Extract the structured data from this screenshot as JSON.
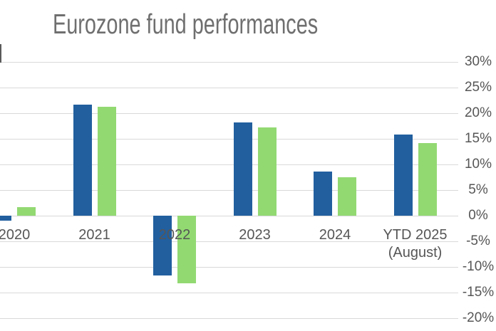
{
  "chart_data": {
    "type": "bar",
    "title": "Eurozone fund performances",
    "categories": [
      "2020",
      "2021",
      "2022",
      "2023",
      "2024",
      "YTD 2025"
    ],
    "category_sublabels": [
      "",
      "",
      "",
      "",
      "",
      "(August)"
    ],
    "series": [
      {
        "name": "blue-series",
        "color": "#215F9F",
        "values": [
          -1.0,
          21.7,
          -11.6,
          18.2,
          8.6,
          15.9
        ]
      },
      {
        "name": "green-series",
        "color": "#92D972",
        "values": [
          1.6,
          21.2,
          -13.2,
          17.2,
          7.5,
          14.1
        ]
      }
    ],
    "y_axis": {
      "side": "right",
      "min": -20,
      "max": 30,
      "step": 5,
      "unit": "%",
      "tick_labels": [
        "30%",
        "25%",
        "20%",
        "15%",
        "10%",
        "5%",
        "0%",
        "-5%",
        "-10%",
        "-15%",
        "-20%"
      ]
    },
    "grid": true,
    "legend_visible": false,
    "left_edge_clipped": true,
    "colors": {
      "title_text": "#6F6F6F",
      "axis_text": "#565656",
      "gridline": "#D9D9D9",
      "edge_mark": "#5A5A5A",
      "background": "#FFFFFF"
    }
  }
}
